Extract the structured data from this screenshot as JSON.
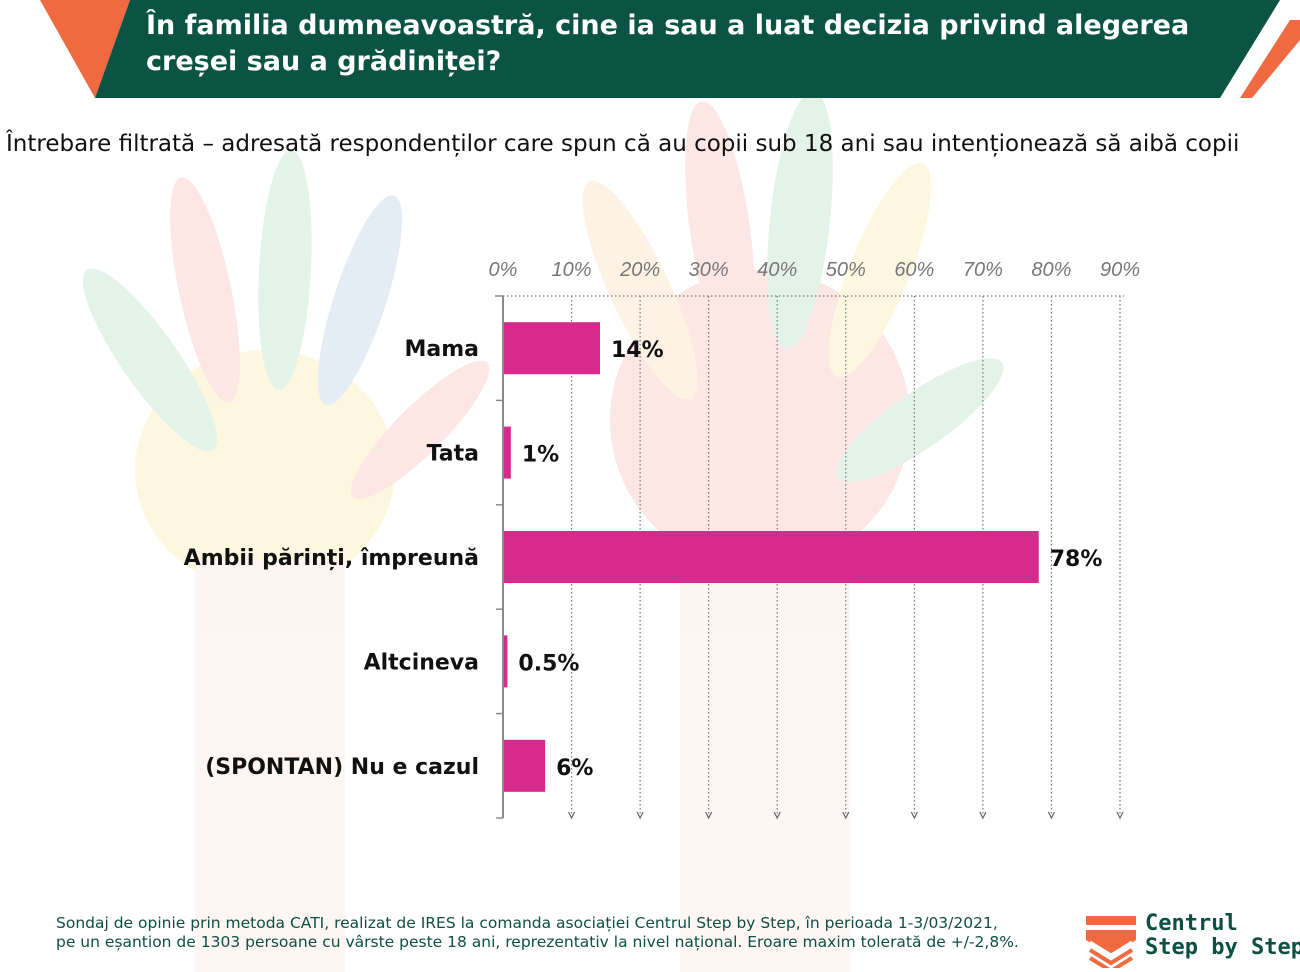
{
  "header": {
    "title": "În familia dumneavoastră, cine ia sau a luat decizia privind alegerea\ncreșei sau a grădiniței?",
    "band_color": "#0b5444",
    "accent_color": "#ef6a40"
  },
  "subtitle": "Întrebare filtrată – adresată respondenților care spun că au copii sub 18 ani sau intenționează să aibă copii",
  "chart_data": {
    "type": "bar",
    "orientation": "horizontal",
    "categories": [
      "Mama",
      "Tata",
      "Ambii părinți, împreună",
      "Altcineva",
      "(SPONTAN) Nu e cazul"
    ],
    "values": [
      14,
      1,
      78,
      0.5,
      6
    ],
    "data_labels": [
      "14%",
      "1%",
      "78%",
      "0.5%",
      "6%"
    ],
    "xlim": [
      0,
      90
    ],
    "x_ticks": [
      "0%",
      "10%",
      "20%",
      "30%",
      "40%",
      "50%",
      "60%",
      "70%",
      "80%",
      "90%"
    ],
    "x_axis_position": "top",
    "grid": true,
    "bar_color": "#d62a8c"
  },
  "footer": {
    "line1": "Sondaj de opinie prin metoda CATI, realizat de IRES la comanda asociației  Centrul Step by Step, în perioada 1-3/03/2021,",
    "line2": "pe un eșantion de 1303 persoane cu vârste peste 18 ani, reprezentativ la nivel național. Eroare maxim tolerată de +/-2,8%."
  },
  "logo": {
    "line1": "Centrul",
    "line2": "Step by Step"
  }
}
